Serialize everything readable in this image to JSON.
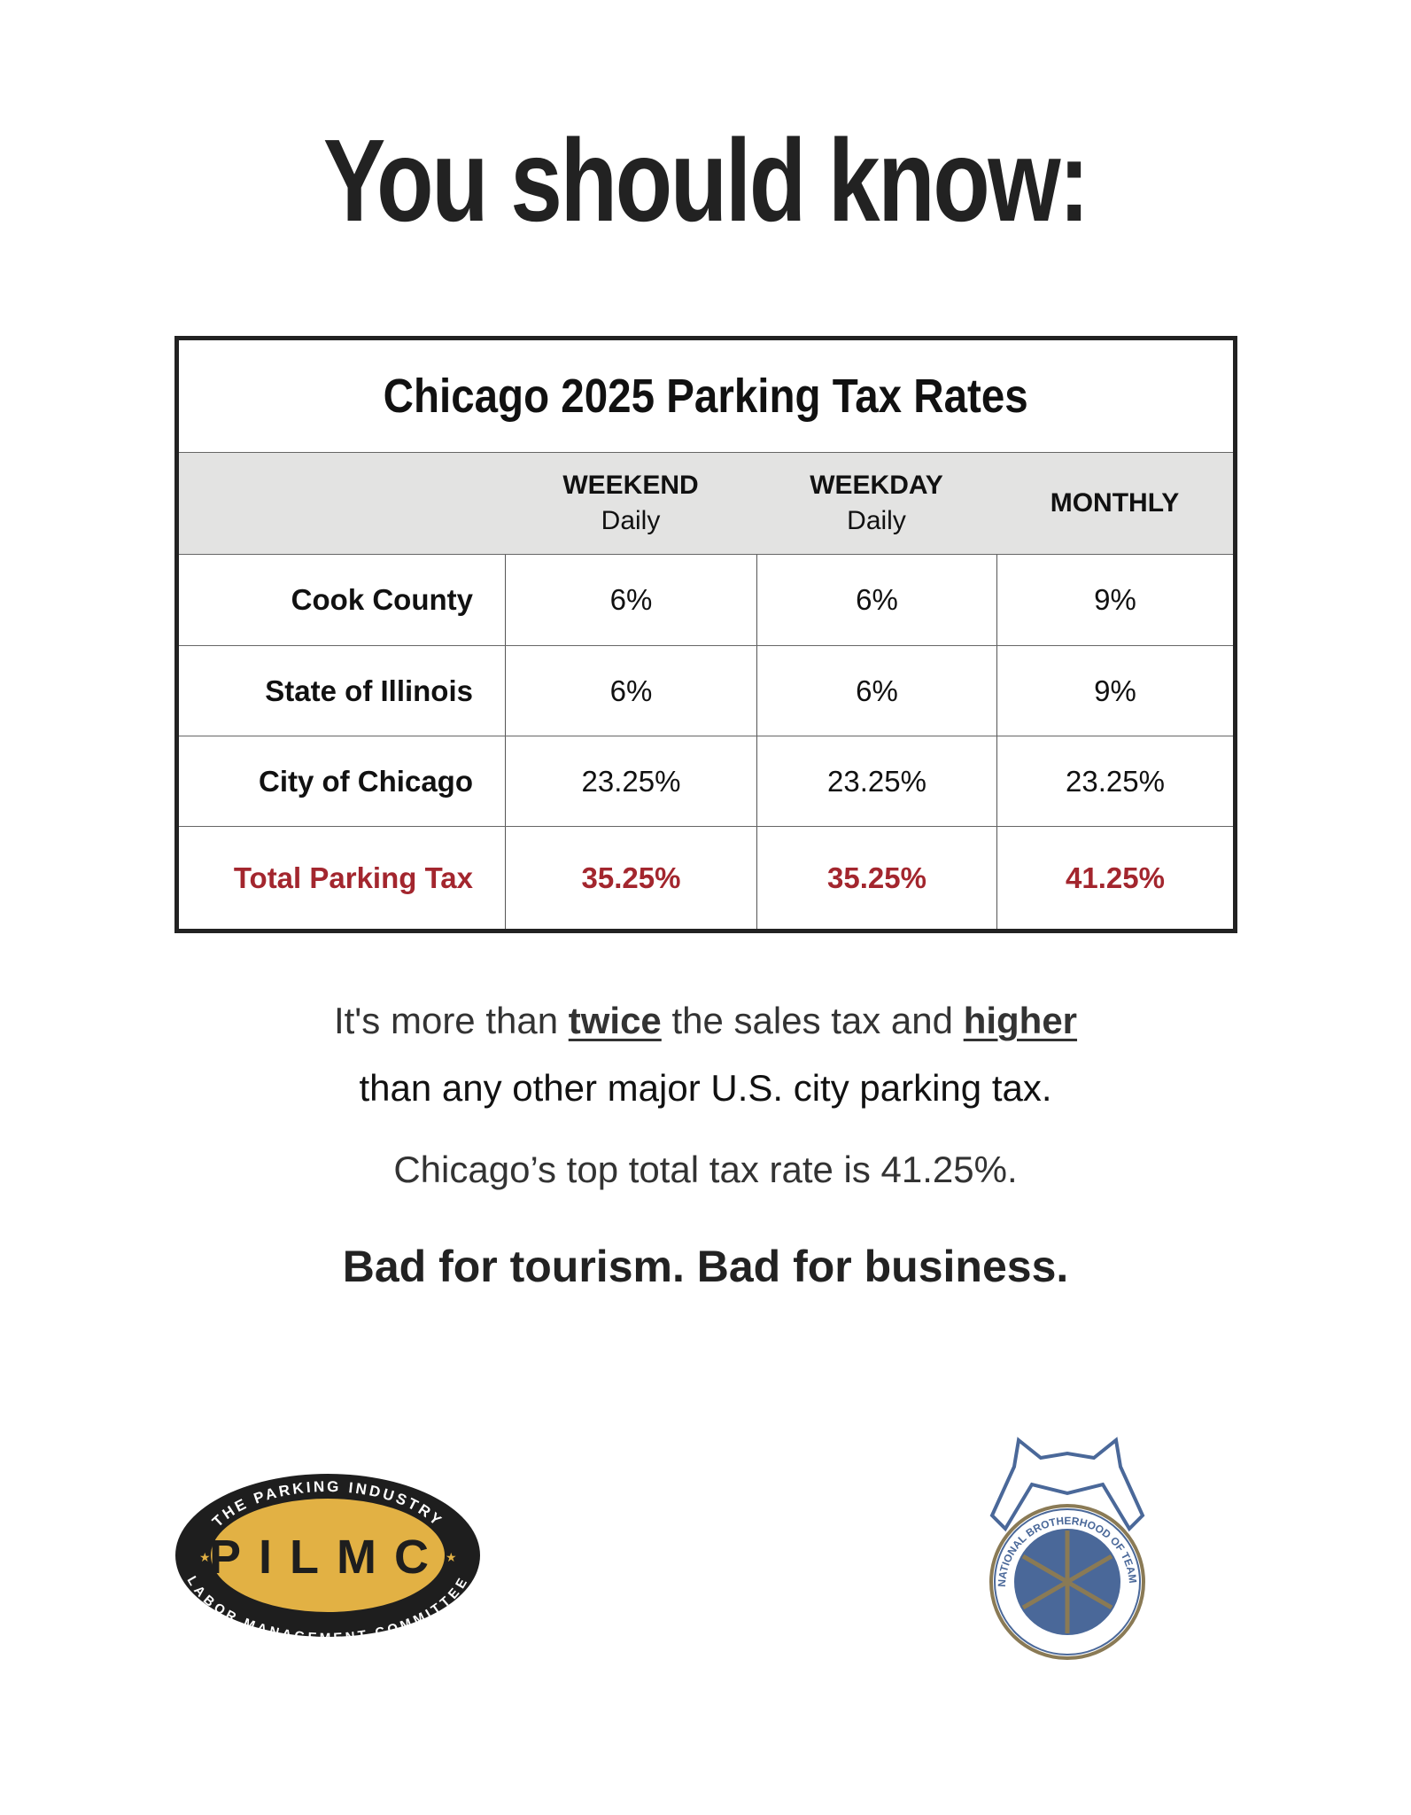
{
  "headline": "You should know:",
  "table": {
    "title": "Chicago 2025 Parking Tax Rates",
    "columns": [
      {
        "main": "WEEKEND",
        "sub": "Daily"
      },
      {
        "main": "WEEKDAY",
        "sub": "Daily"
      },
      {
        "main": "MONTHLY",
        "sub": ""
      }
    ],
    "rows": [
      {
        "label": "Cook County",
        "values": [
          "6%",
          "6%",
          "9%"
        ]
      },
      {
        "label": "State of Illinois",
        "values": [
          "6%",
          "6%",
          "9%"
        ]
      },
      {
        "label": "City of Chicago",
        "values": [
          "23.25%",
          "23.25%",
          "23.25%"
        ]
      },
      {
        "label": "Total Parking Tax",
        "values": [
          "35.25%",
          "35.25%",
          "41.25%"
        ]
      }
    ]
  },
  "body": {
    "line1_a": "It's more than ",
    "line1_b": "twice",
    "line1_c": " the sales tax and ",
    "line1_d": "higher",
    "line2": "than any other major U.S. city parking tax.",
    "line3": "Chicago’s top total tax rate is 41.25%.",
    "tagline": "Bad for tourism. Bad for business."
  },
  "logos": {
    "pilmc": {
      "center": "PILMC",
      "top": "THE PARKING INDUSTRY",
      "bottom": "LABOR MANAGEMENT COMMITTEE"
    },
    "teamsters": {
      "ring": "INTERNATIONAL BROTHERHOOD OF TEAMSTERS"
    }
  },
  "colors": {
    "accent_red": "#a3262e",
    "pilmc_gold": "#e2b144",
    "teamsters_blue": "#4a6899"
  }
}
